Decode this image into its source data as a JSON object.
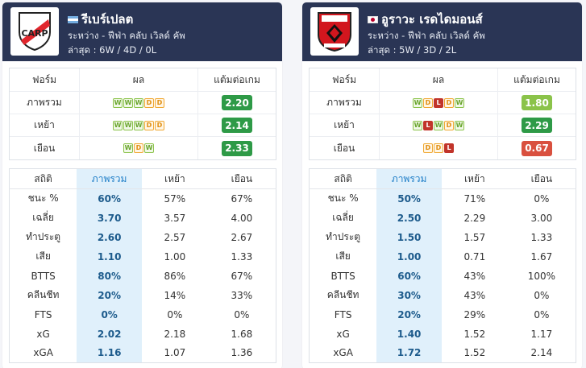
{
  "teams": [
    {
      "name": "รีเบร์เปลต",
      "competition": "ระหว่าง - ฟีฟ่า คลับ เวิลด์ คัพ",
      "recent": "ล่าสุด : 6W / 4D / 0L",
      "flag": "ar",
      "logo_icon": "river-plate-crest-icon",
      "form_header": {
        "form": "ฟอร์ม",
        "result": "ผล",
        "ppg": "แต้มต่อเกม"
      },
      "form_rows": [
        {
          "label": "ภาพรวม",
          "results": [
            "W",
            "W",
            "W",
            "D",
            "D"
          ],
          "ppg": "2.20",
          "ppg_color": "#2e9a47"
        },
        {
          "label": "เหย้า",
          "results": [
            "W",
            "W",
            "W",
            "D",
            "D"
          ],
          "ppg": "2.14",
          "ppg_color": "#2e9a47"
        },
        {
          "label": "เยือน",
          "results": [
            "W",
            "D",
            "W"
          ],
          "ppg": "2.33",
          "ppg_color": "#2e9a47"
        }
      ],
      "stats_header": {
        "stat": "สถิติ",
        "overall": "ภาพรวม",
        "home": "เหย้า",
        "away": "เยือน"
      },
      "stats": [
        {
          "label": "ชนะ %",
          "overall": "60%",
          "home": "57%",
          "away": "67%"
        },
        {
          "label": "เฉลี่ย",
          "overall": "3.70",
          "home": "3.57",
          "away": "4.00"
        },
        {
          "label": "ทำประตู",
          "overall": "2.60",
          "home": "2.57",
          "away": "2.67"
        },
        {
          "label": "เสีย",
          "overall": "1.10",
          "home": "1.00",
          "away": "1.33"
        },
        {
          "label": "BTTS",
          "overall": "80%",
          "home": "86%",
          "away": "67%"
        },
        {
          "label": "คลีนชีท",
          "overall": "20%",
          "home": "14%",
          "away": "33%"
        },
        {
          "label": "FTS",
          "overall": "0%",
          "home": "0%",
          "away": "0%"
        },
        {
          "label": "xG",
          "overall": "2.02",
          "home": "2.18",
          "away": "1.68"
        },
        {
          "label": "xGA",
          "overall": "1.16",
          "home": "1.07",
          "away": "1.36"
        }
      ]
    },
    {
      "name": "อูราวะ เรดไดมอนส์",
      "competition": "ระหว่าง - ฟีฟ่า คลับ เวิลด์ คัพ",
      "recent": "ล่าสุด : 5W / 3D / 2L",
      "flag": "jp",
      "logo_icon": "urawa-red-diamonds-crest-icon",
      "form_header": {
        "form": "ฟอร์ม",
        "result": "ผล",
        "ppg": "แต้มต่อเกม"
      },
      "form_rows": [
        {
          "label": "ภาพรวม",
          "results": [
            "W",
            "D",
            "L",
            "D",
            "W"
          ],
          "ppg": "1.80",
          "ppg_color": "#8bc34a"
        },
        {
          "label": "เหย้า",
          "results": [
            "W",
            "L",
            "W",
            "D",
            "W"
          ],
          "ppg": "2.29",
          "ppg_color": "#2e9a47"
        },
        {
          "label": "เยือน",
          "results": [
            "D",
            "D",
            "L"
          ],
          "ppg": "0.67",
          "ppg_color": "#d9503f"
        }
      ],
      "stats_header": {
        "stat": "สถิติ",
        "overall": "ภาพรวม",
        "home": "เหย้า",
        "away": "เยือน"
      },
      "stats": [
        {
          "label": "ชนะ %",
          "overall": "50%",
          "home": "71%",
          "away": "0%"
        },
        {
          "label": "เฉลี่ย",
          "overall": "2.50",
          "home": "2.29",
          "away": "3.00"
        },
        {
          "label": "ทำประตู",
          "overall": "1.50",
          "home": "1.57",
          "away": "1.33"
        },
        {
          "label": "เสีย",
          "overall": "1.00",
          "home": "0.71",
          "away": "1.67"
        },
        {
          "label": "BTTS",
          "overall": "60%",
          "home": "43%",
          "away": "100%"
        },
        {
          "label": "คลีนชีท",
          "overall": "30%",
          "home": "43%",
          "away": "0%"
        },
        {
          "label": "FTS",
          "overall": "20%",
          "home": "29%",
          "away": "0%"
        },
        {
          "label": "xG",
          "overall": "1.40",
          "home": "1.52",
          "away": "1.17"
        },
        {
          "label": "xGA",
          "overall": "1.72",
          "home": "1.52",
          "away": "2.14"
        }
      ]
    }
  ]
}
